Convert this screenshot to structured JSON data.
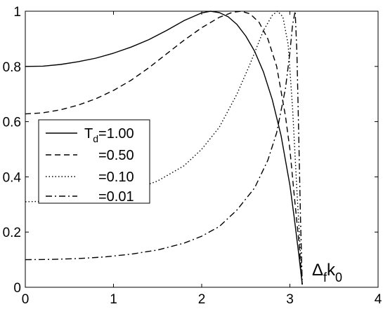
{
  "chart_data": {
    "type": "line",
    "title": "",
    "xlabel_base": "Δ",
    "xlabel_sub1": "f",
    "xlabel_mid": "k",
    "xlabel_sub2": "0",
    "ylabel": "",
    "xlim": [
      0,
      4
    ],
    "ylim": [
      0,
      1
    ],
    "xticks": [
      "0",
      "1",
      "2",
      "3",
      "4"
    ],
    "yticks": [
      "0",
      "0.2",
      "0.4",
      "0.6",
      "0.8",
      "1"
    ],
    "grid": false,
    "legend_position": "center-left",
    "legend": {
      "first_prefix": "T",
      "first_sub": "d",
      "first_value": "=1.00",
      "others": [
        "=0.50",
        "=0.10",
        "=0.01"
      ]
    },
    "series": [
      {
        "name": "T_d=1.00",
        "style": "solid",
        "x": [
          0,
          0.2,
          0.4,
          0.6,
          0.8,
          1.0,
          1.2,
          1.4,
          1.6,
          1.8,
          2.0,
          2.1,
          2.2,
          2.3,
          2.4,
          2.5,
          2.6,
          2.7,
          2.8,
          2.9,
          3.0,
          3.05,
          3.1,
          3.14
        ],
        "y": [
          0.8,
          0.801,
          0.807,
          0.817,
          0.83,
          0.848,
          0.87,
          0.897,
          0.93,
          0.966,
          0.994,
          1.0,
          0.995,
          0.98,
          0.952,
          0.91,
          0.855,
          0.78,
          0.68,
          0.55,
          0.37,
          0.25,
          0.12,
          0.01
        ]
      },
      {
        "name": "=0.50",
        "style": "dashed",
        "x": [
          0,
          0.2,
          0.4,
          0.6,
          0.8,
          1.0,
          1.2,
          1.4,
          1.6,
          1.8,
          2.0,
          2.2,
          2.35,
          2.45,
          2.55,
          2.65,
          2.75,
          2.85,
          2.95,
          3.0,
          3.05,
          3.1,
          3.14
        ],
        "y": [
          0.628,
          0.632,
          0.643,
          0.66,
          0.683,
          0.713,
          0.75,
          0.795,
          0.845,
          0.895,
          0.94,
          0.978,
          0.996,
          1.0,
          0.99,
          0.96,
          0.9,
          0.8,
          0.62,
          0.5,
          0.33,
          0.17,
          0.01
        ]
      },
      {
        "name": "=0.10",
        "style": "dotted",
        "x": [
          0,
          0.3,
          0.6,
          0.9,
          1.2,
          1.5,
          1.8,
          2.0,
          2.2,
          2.4,
          2.55,
          2.7,
          2.8,
          2.86,
          2.92,
          2.98,
          3.03,
          3.08,
          3.14
        ],
        "y": [
          0.31,
          0.312,
          0.318,
          0.33,
          0.35,
          0.385,
          0.44,
          0.5,
          0.58,
          0.7,
          0.81,
          0.93,
          0.985,
          1.0,
          0.98,
          0.88,
          0.65,
          0.35,
          0.01
        ]
      },
      {
        "name": "=0.01",
        "style": "dashdot",
        "x": [
          0,
          0.3,
          0.6,
          0.9,
          1.2,
          1.5,
          1.8,
          2.0,
          2.2,
          2.4,
          2.6,
          2.75,
          2.85,
          2.95,
          3.0,
          3.03,
          3.06,
          3.08,
          3.1,
          3.12,
          3.14
        ],
        "y": [
          0.1,
          0.101,
          0.104,
          0.11,
          0.12,
          0.135,
          0.16,
          0.185,
          0.22,
          0.28,
          0.36,
          0.46,
          0.56,
          0.72,
          0.85,
          0.95,
          1.0,
          0.85,
          0.55,
          0.25,
          0.01
        ]
      }
    ]
  }
}
